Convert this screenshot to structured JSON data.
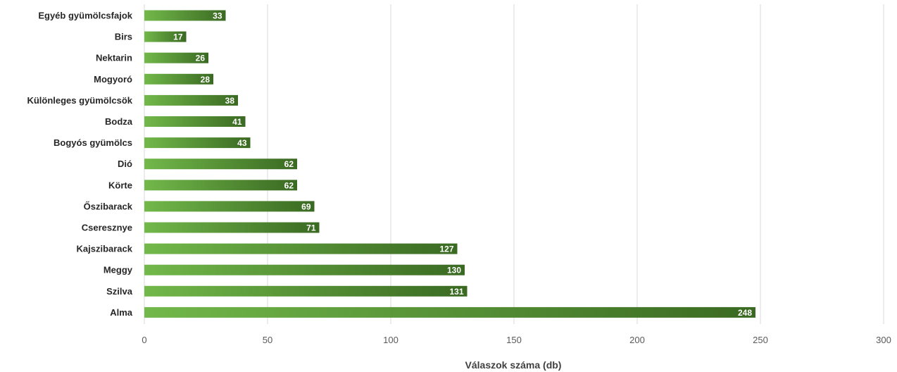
{
  "chart_data": {
    "type": "bar",
    "orientation": "horizontal",
    "categories": [
      "Egyéb gyümölcsfajok",
      "Birs",
      "Nektarin",
      "Mogyoró",
      "Különleges gyümölcsök",
      "Bodza",
      "Bogyós gyümölcs",
      "Dió",
      "Körte",
      "Őszibarack",
      "Cseresznye",
      "Kajszibarack",
      "Meggy",
      "Szilva",
      "Alma"
    ],
    "values": [
      33,
      17,
      26,
      28,
      38,
      41,
      43,
      62,
      62,
      69,
      71,
      127,
      130,
      131,
      248
    ],
    "data_labels": [
      "33",
      "17",
      "26",
      "28",
      "38",
      "41",
      "43",
      "62",
      "62",
      "69",
      "71",
      "127",
      "130",
      "131",
      "248"
    ],
    "xlabel": "Válaszok száma (db)",
    "ylabel": "",
    "xlim": [
      0,
      300
    ],
    "x_ticks": [
      "0",
      "50",
      "100",
      "150",
      "200",
      "250",
      "300"
    ],
    "grid": "vertical",
    "legend": "none",
    "colors": {
      "bar_light": "#72b84a",
      "bar_dark": "#3a6a22",
      "grid": "#d9d9d9",
      "text": "#262626"
    }
  }
}
